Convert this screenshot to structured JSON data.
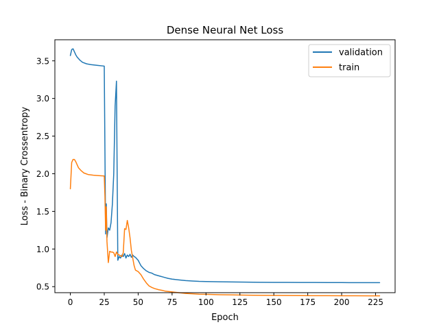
{
  "chart_data": {
    "type": "line",
    "title": "Dense Neural Net Loss",
    "xlabel": "Epoch",
    "ylabel": "Loss - Binary Crossentropy",
    "xlim": [
      -11.4,
      239.4
    ],
    "ylim": [
      0.42,
      3.78
    ],
    "xticks": [
      0,
      25,
      50,
      75,
      100,
      125,
      150,
      175,
      200,
      225
    ],
    "yticks": [
      0.5,
      1.0,
      1.5,
      2.0,
      2.5,
      3.0,
      3.5
    ],
    "ytick_labels": [
      "0.5",
      "1.0",
      "1.5",
      "2.0",
      "2.5",
      "3.0",
      "3.5"
    ],
    "grid": false,
    "legend_position": "top-right",
    "series": [
      {
        "name": "validation",
        "color": "#1f77b4",
        "points": [
          [
            0,
            3.57
          ],
          [
            1,
            3.65
          ],
          [
            2,
            3.66
          ],
          [
            3,
            3.62
          ],
          [
            4,
            3.58
          ],
          [
            5,
            3.55
          ],
          [
            7,
            3.51
          ],
          [
            9,
            3.48
          ],
          [
            12,
            3.46
          ],
          [
            15,
            3.45
          ],
          [
            20,
            3.44
          ],
          [
            25,
            3.43
          ],
          [
            25.5,
            2.3
          ],
          [
            26,
            1.2
          ],
          [
            26.5,
            1.6
          ],
          [
            27,
            1.15
          ],
          [
            28,
            1.28
          ],
          [
            29,
            1.25
          ],
          [
            30,
            1.35
          ],
          [
            31,
            1.6
          ],
          [
            32,
            2.0
          ],
          [
            33,
            2.9
          ],
          [
            34,
            3.23
          ],
          [
            34.5,
            2.0
          ],
          [
            35,
            0.85
          ],
          [
            36,
            0.9
          ],
          [
            37,
            0.88
          ],
          [
            38,
            0.92
          ],
          [
            39,
            0.9
          ],
          [
            40,
            0.94
          ],
          [
            41,
            0.88
          ],
          [
            42,
            0.92
          ],
          [
            43,
            0.9
          ],
          [
            44,
            0.93
          ],
          [
            45,
            0.89
          ],
          [
            46,
            0.92
          ],
          [
            47,
            0.9
          ],
          [
            48,
            0.89
          ],
          [
            49,
            0.87
          ],
          [
            50,
            0.85
          ],
          [
            52,
            0.78
          ],
          [
            54,
            0.74
          ],
          [
            56,
            0.71
          ],
          [
            58,
            0.69
          ],
          [
            60,
            0.68
          ],
          [
            62,
            0.66
          ],
          [
            64,
            0.65
          ],
          [
            66,
            0.64
          ],
          [
            68,
            0.63
          ],
          [
            70,
            0.62
          ],
          [
            72,
            0.61
          ],
          [
            75,
            0.6
          ],
          [
            80,
            0.59
          ],
          [
            85,
            0.58
          ],
          [
            90,
            0.575
          ],
          [
            95,
            0.57
          ],
          [
            100,
            0.568
          ],
          [
            110,
            0.565
          ],
          [
            120,
            0.562
          ],
          [
            130,
            0.56
          ],
          [
            140,
            0.558
          ],
          [
            150,
            0.557
          ],
          [
            160,
            0.556
          ],
          [
            170,
            0.555
          ],
          [
            180,
            0.555
          ],
          [
            190,
            0.554
          ],
          [
            200,
            0.554
          ],
          [
            210,
            0.553
          ],
          [
            220,
            0.553
          ],
          [
            228,
            0.553
          ]
        ]
      },
      {
        "name": "train",
        "color": "#ff7f0e",
        "points": [
          [
            0,
            1.8
          ],
          [
            1,
            2.15
          ],
          [
            2,
            2.19
          ],
          [
            3,
            2.19
          ],
          [
            4,
            2.16
          ],
          [
            5,
            2.12
          ],
          [
            6,
            2.08
          ],
          [
            8,
            2.04
          ],
          [
            10,
            2.01
          ],
          [
            13,
            1.99
          ],
          [
            17,
            1.98
          ],
          [
            21,
            1.975
          ],
          [
            25,
            1.97
          ],
          [
            25.5,
            1.7
          ],
          [
            26,
            1.25
          ],
          [
            26.5,
            1.56
          ],
          [
            27,
            1.1
          ],
          [
            28,
            0.82
          ],
          [
            29,
            0.97
          ],
          [
            30,
            0.96
          ],
          [
            31,
            0.96
          ],
          [
            32,
            0.95
          ],
          [
            33,
            0.9
          ],
          [
            34,
            0.96
          ],
          [
            35,
            0.93
          ],
          [
            36,
            0.92
          ],
          [
            37,
            0.91
          ],
          [
            38,
            0.9
          ],
          [
            39,
            0.95
          ],
          [
            40,
            1.27
          ],
          [
            41,
            1.26
          ],
          [
            42,
            1.38
          ],
          [
            43,
            1.28
          ],
          [
            44,
            1.15
          ],
          [
            45,
            0.98
          ],
          [
            46,
            0.88
          ],
          [
            47,
            0.78
          ],
          [
            48,
            0.72
          ],
          [
            50,
            0.7
          ],
          [
            52,
            0.66
          ],
          [
            54,
            0.6
          ],
          [
            56,
            0.55
          ],
          [
            58,
            0.51
          ],
          [
            60,
            0.49
          ],
          [
            62,
            0.475
          ],
          [
            65,
            0.46
          ],
          [
            68,
            0.45
          ],
          [
            70,
            0.44
          ],
          [
            75,
            0.43
          ],
          [
            80,
            0.42
          ],
          [
            85,
            0.41
          ],
          [
            90,
            0.405
          ],
          [
            95,
            0.4
          ],
          [
            100,
            0.398
          ],
          [
            110,
            0.393
          ],
          [
            120,
            0.39
          ],
          [
            130,
            0.387
          ],
          [
            140,
            0.385
          ],
          [
            150,
            0.383
          ],
          [
            160,
            0.382
          ],
          [
            170,
            0.381
          ],
          [
            180,
            0.38
          ],
          [
            190,
            0.38
          ],
          [
            200,
            0.379
          ],
          [
            210,
            0.379
          ],
          [
            220,
            0.378
          ],
          [
            228,
            0.378
          ]
        ]
      }
    ]
  }
}
